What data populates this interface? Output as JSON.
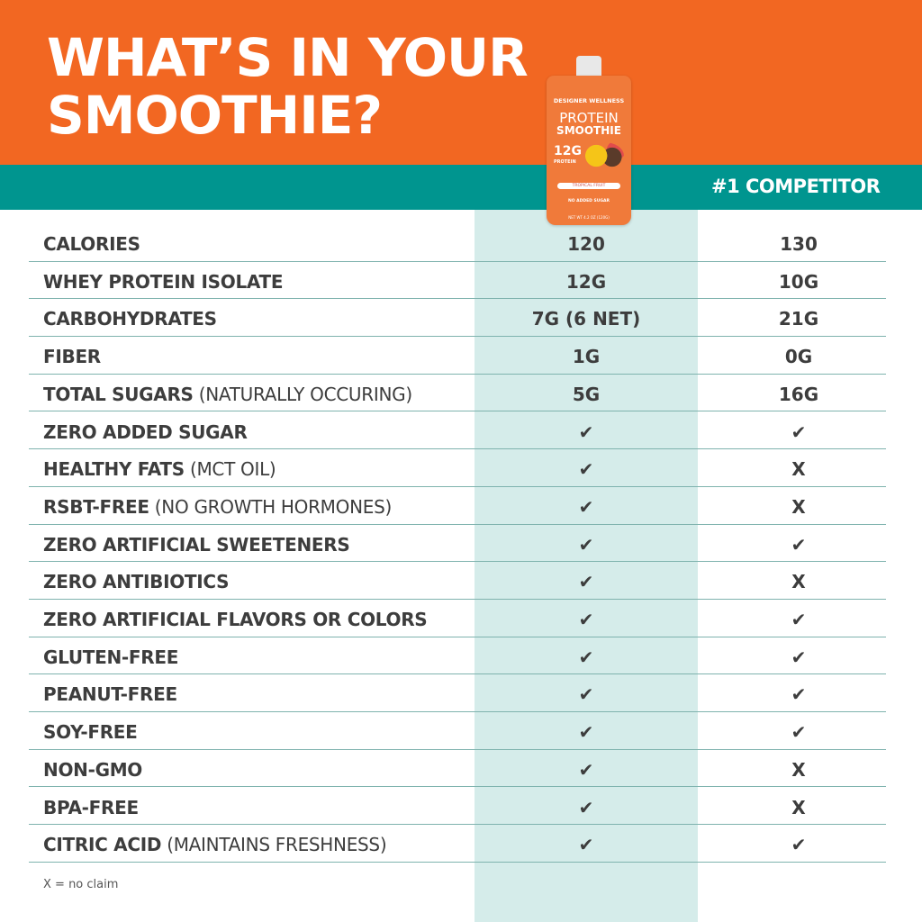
{
  "header": {
    "title_line1": "WHAT’S IN YOUR",
    "title_line2": "SMOOTHIE?",
    "competitor_label": "#1 COMPETITOR"
  },
  "product": {
    "brand": "DESIGNER WELLNESS",
    "name_line1": "PROTEIN",
    "name_line2": "SMOOTHIE",
    "protein": "12G",
    "protein_label": "PROTEIN",
    "flavor": "TROPICAL FRUIT",
    "claim": "NO ADDED SUGAR",
    "net_wt": "NET WT 4.2 OZ (120G)"
  },
  "colors": {
    "orange": "#f26722",
    "teal": "#00958f",
    "highlight": "#d5ecea"
  },
  "rows": [
    {
      "label": "CALORIES",
      "note": "",
      "ours": "120",
      "competitor": "130"
    },
    {
      "label": "WHEY PROTEIN ISOLATE",
      "note": "",
      "ours": "12G",
      "competitor": "10G"
    },
    {
      "label": "CARBOHYDRATES",
      "note": "",
      "ours": "7G (6 NET)",
      "competitor": "21G"
    },
    {
      "label": "FIBER",
      "note": "",
      "ours": "1G",
      "competitor": "0G"
    },
    {
      "label": "TOTAL SUGARS",
      "note": " (NATURALLY OCCURING)",
      "ours": "5G",
      "competitor": "16G"
    },
    {
      "label": "ZERO ADDED SUGAR",
      "note": "",
      "ours": "✔",
      "competitor": "✔"
    },
    {
      "label": "HEALTHY FATS",
      "note": " (MCT OIL)",
      "ours": "✔",
      "competitor": "X"
    },
    {
      "label": "RSBT-FREE",
      "note": " (NO GROWTH HORMONES)",
      "ours": "✔",
      "competitor": "X"
    },
    {
      "label": "ZERO ARTIFICIAL SWEETENERS",
      "note": "",
      "ours": "✔",
      "competitor": "✔"
    },
    {
      "label": "ZERO ANTIBIOTICS",
      "note": "",
      "ours": "✔",
      "competitor": "X"
    },
    {
      "label": "ZERO ARTIFICIAL FLAVORS OR COLORS",
      "note": "",
      "ours": "✔",
      "competitor": "✔"
    },
    {
      "label": "GLUTEN-FREE",
      "note": "",
      "ours": "✔",
      "competitor": "✔"
    },
    {
      "label": "PEANUT-FREE",
      "note": "",
      "ours": "✔",
      "competitor": "✔"
    },
    {
      "label": "SOY-FREE",
      "note": "",
      "ours": "✔",
      "competitor": "✔"
    },
    {
      "label": "NON-GMO",
      "note": "",
      "ours": "✔",
      "competitor": "X"
    },
    {
      "label": "BPA-FREE",
      "note": "",
      "ours": "✔",
      "competitor": "X"
    },
    {
      "label": "CITRIC ACID",
      "note": " (MAINTAINS FRESHNESS)",
      "ours": "✔",
      "competitor": "✔"
    }
  ],
  "footnote": "X = no claim"
}
